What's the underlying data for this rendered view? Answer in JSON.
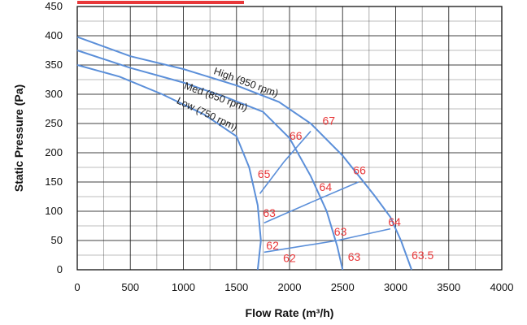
{
  "colors": {
    "curve": "#5b8fd9",
    "noise_text": "#e8383a",
    "grid": "#222222",
    "legend_bar": "#e8383a"
  },
  "chart_data": {
    "type": "line",
    "xlabel": "Flow Rate (m³/h)",
    "ylabel": "Static Pressure (Pa)",
    "xlim": [
      0,
      4000
    ],
    "ylim": [
      0,
      450
    ],
    "xticks": [
      "0",
      "500",
      "1000",
      "1500",
      "2000",
      "2500",
      "3000",
      "3500",
      "4000"
    ],
    "yticks": [
      "0",
      "50",
      "100",
      "150",
      "200",
      "250",
      "300",
      "350",
      "400",
      "450"
    ],
    "grid": true,
    "series": [
      {
        "name": "High (950 rpm)",
        "points": [
          [
            0,
            398
          ],
          [
            500,
            365
          ],
          [
            1000,
            343
          ],
          [
            1500,
            315
          ],
          [
            1900,
            287
          ],
          [
            2200,
            250
          ],
          [
            2500,
            195
          ],
          [
            2800,
            127
          ],
          [
            2950,
            90
          ],
          [
            3050,
            50
          ],
          [
            3150,
            0
          ]
        ]
      },
      {
        "name": "Med (850 rpm)",
        "points": [
          [
            0,
            375
          ],
          [
            500,
            345
          ],
          [
            1000,
            320
          ],
          [
            1400,
            295
          ],
          [
            1750,
            270
          ],
          [
            2000,
            225
          ],
          [
            2200,
            160
          ],
          [
            2350,
            100
          ],
          [
            2450,
            40
          ],
          [
            2500,
            0
          ]
        ]
      },
      {
        "name": "Low (750 rpm)",
        "points": [
          [
            0,
            350
          ],
          [
            400,
            330
          ],
          [
            800,
            300
          ],
          [
            1200,
            265
          ],
          [
            1500,
            228
          ],
          [
            1620,
            175
          ],
          [
            1700,
            110
          ],
          [
            1730,
            50
          ],
          [
            1700,
            0
          ]
        ]
      }
    ],
    "noise_lines": [
      {
        "points": [
          [
            1720,
            130
          ],
          [
            1950,
            185
          ],
          [
            2200,
            237
          ]
        ]
      },
      {
        "points": [
          [
            1760,
            80
          ],
          [
            2200,
            115
          ],
          [
            2650,
            150
          ]
        ]
      },
      {
        "points": [
          [
            1760,
            30
          ],
          [
            2450,
            50
          ],
          [
            2950,
            70
          ]
        ]
      }
    ],
    "noise_labels": [
      {
        "text": "67",
        "x": 2310,
        "y": 248
      },
      {
        "text": "66",
        "x": 2000,
        "y": 222
      },
      {
        "text": "65",
        "x": 1700,
        "y": 157
      },
      {
        "text": "66",
        "x": 2600,
        "y": 163
      },
      {
        "text": "64",
        "x": 2280,
        "y": 135
      },
      {
        "text": "63",
        "x": 1750,
        "y": 90
      },
      {
        "text": "64",
        "x": 2930,
        "y": 75
      },
      {
        "text": "63",
        "x": 2420,
        "y": 58
      },
      {
        "text": "62",
        "x": 1780,
        "y": 35
      },
      {
        "text": "62",
        "x": 1940,
        "y": 13
      },
      {
        "text": "63",
        "x": 2550,
        "y": 15
      },
      {
        "text": "63.5",
        "x": 3150,
        "y": 18
      }
    ]
  }
}
